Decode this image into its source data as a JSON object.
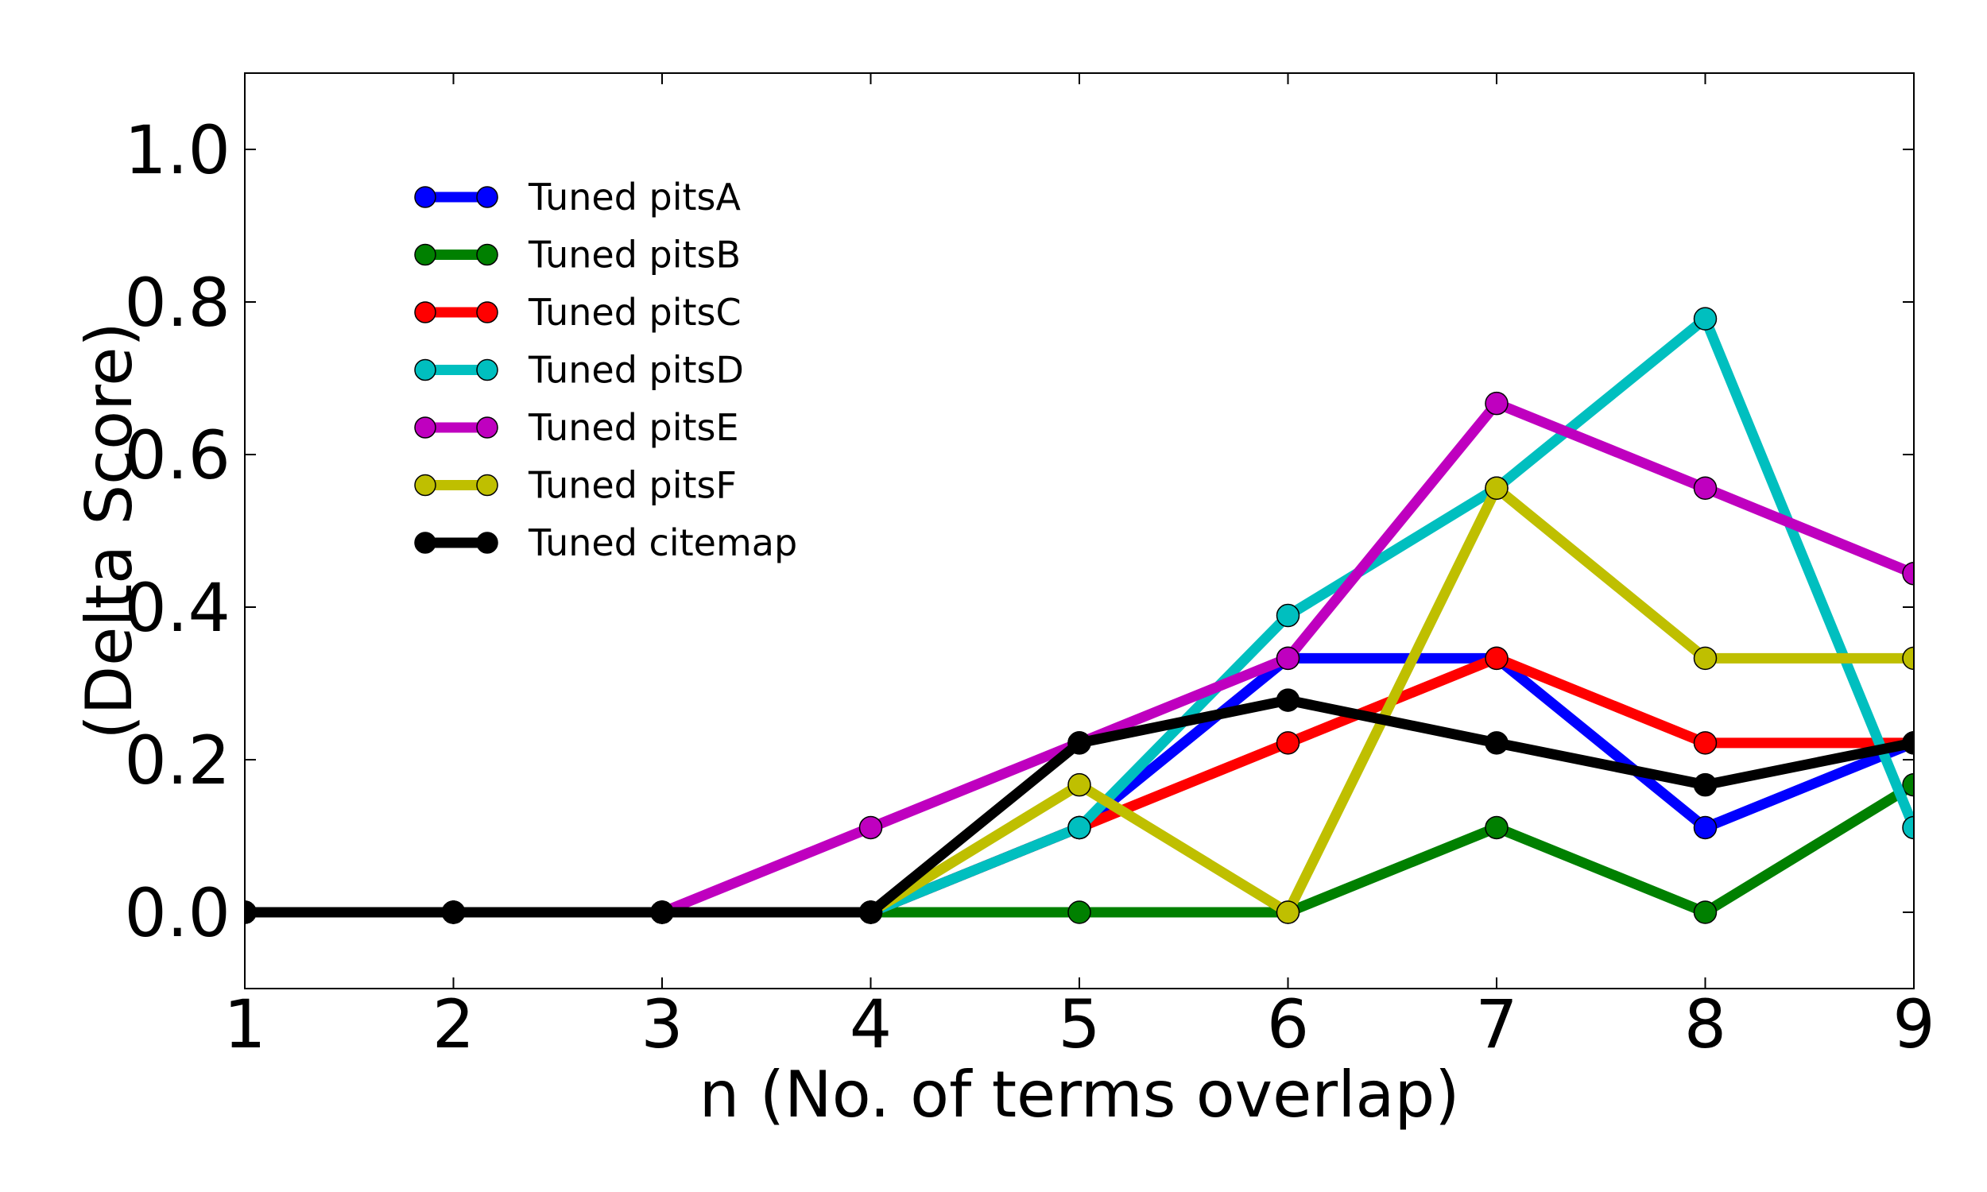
{
  "chart_data": {
    "type": "line",
    "title": "",
    "xlabel": "n (No. of terms overlap)",
    "ylabel": "(Delta Score)",
    "xlim": [
      1,
      9
    ],
    "ylim": [
      -0.1,
      1.1
    ],
    "xticks": [
      1,
      2,
      3,
      4,
      5,
      6,
      7,
      8,
      9
    ],
    "xtick_labels": [
      "1",
      "2",
      "3",
      "4",
      "5",
      "6",
      "7",
      "8",
      "9"
    ],
    "yticks": [
      0.0,
      0.2,
      0.4,
      0.6,
      0.8,
      1.0
    ],
    "ytick_labels": [
      "0.0",
      "0.2",
      "0.4",
      "0.6",
      "0.8",
      "1.0"
    ],
    "grid": false,
    "legend_position": "upper-left",
    "x": [
      1,
      2,
      3,
      4,
      5,
      6,
      7,
      8,
      9
    ],
    "series": [
      {
        "name": "Tuned pitsA",
        "color": "#0000ff",
        "values": [
          0,
          0,
          0,
          0,
          0.111,
          0.333,
          0.333,
          0.111,
          0.222
        ]
      },
      {
        "name": "Tuned pitsB",
        "color": "#008000",
        "values": [
          0,
          0,
          0,
          0,
          0,
          0,
          0.111,
          0,
          0.167
        ]
      },
      {
        "name": "Tuned pitsC",
        "color": "#ff0000",
        "values": [
          0,
          0,
          0,
          0,
          0.111,
          0.222,
          0.333,
          0.222,
          0.222
        ]
      },
      {
        "name": "Tuned pitsD",
        "color": "#00bfbf",
        "values": [
          0,
          0,
          0,
          0,
          0.111,
          0.389,
          0.556,
          0.778,
          0.111
        ]
      },
      {
        "name": "Tuned pitsE",
        "color": "#bf00bf",
        "values": [
          0,
          0,
          0,
          0.111,
          0.222,
          0.333,
          0.667,
          0.556,
          0.444
        ]
      },
      {
        "name": "Tuned pitsF",
        "color": "#bfbf00",
        "values": [
          0,
          0,
          0,
          0,
          0.167,
          0,
          0.556,
          0.333,
          0.333
        ]
      },
      {
        "name": "Tuned citemap",
        "color": "#000000",
        "values": [
          0,
          0,
          0,
          0,
          0.222,
          0.278,
          0.222,
          0.167,
          0.222
        ]
      }
    ]
  }
}
